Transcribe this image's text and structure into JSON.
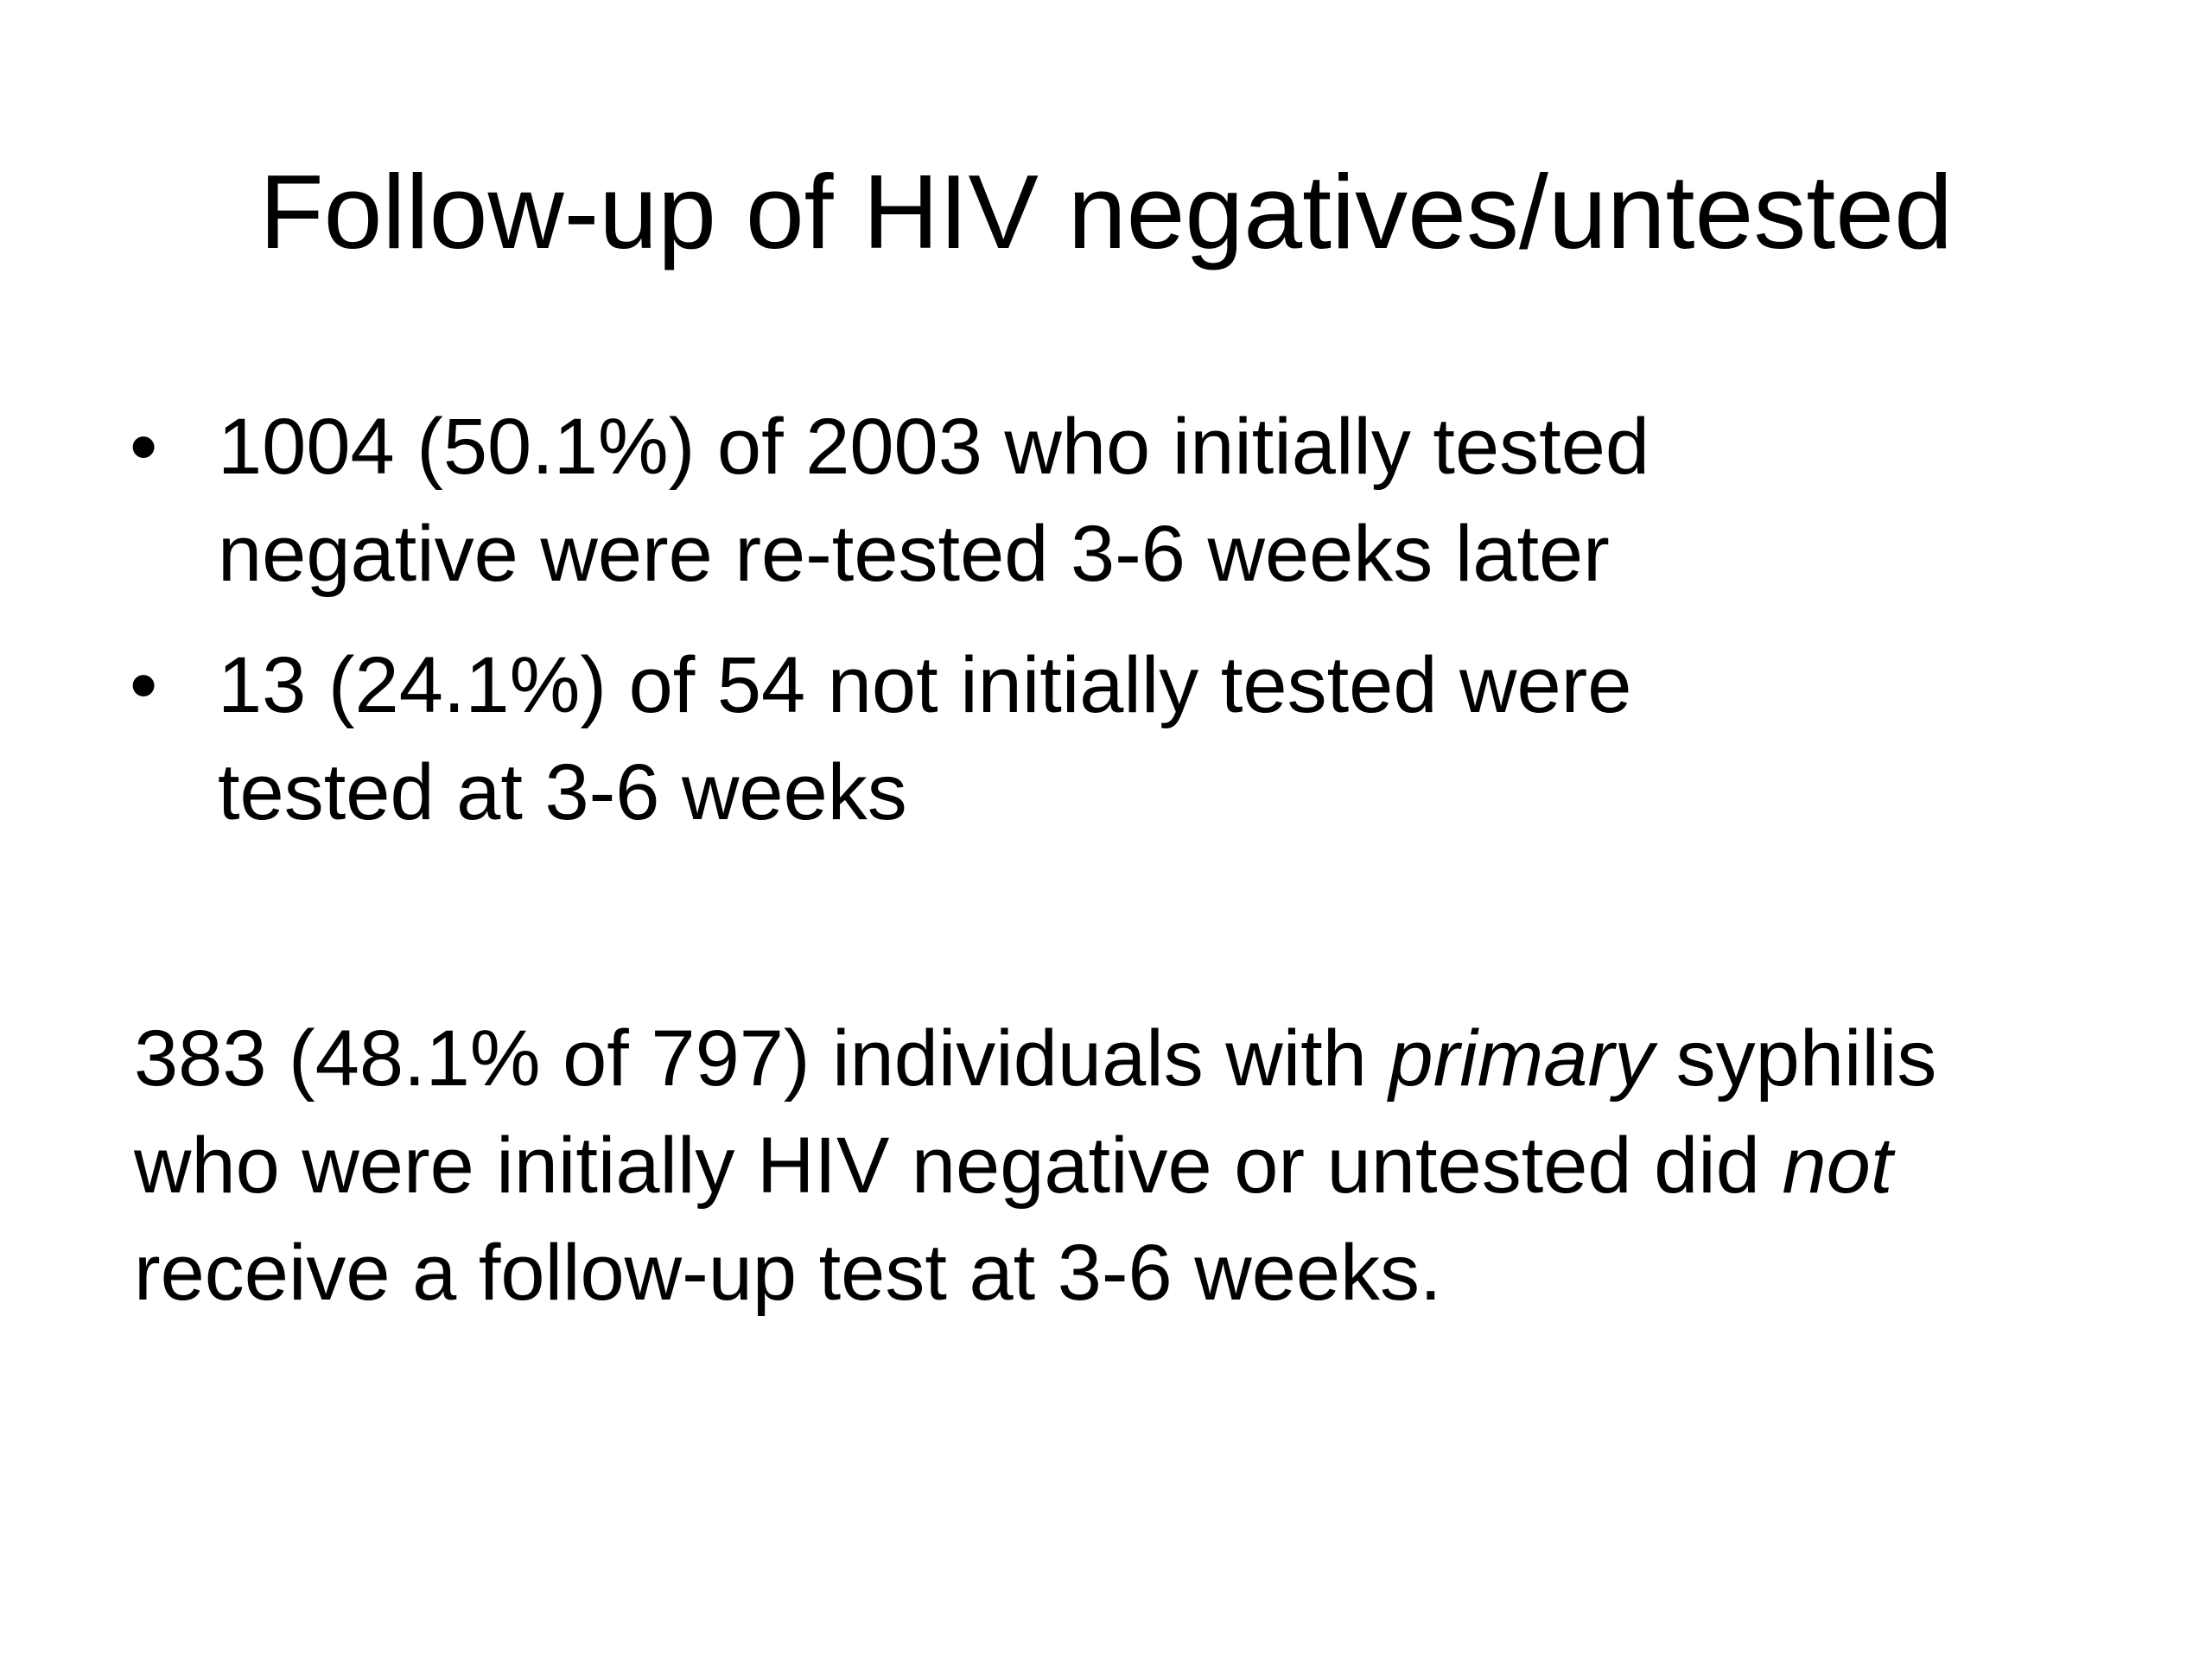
{
  "slide": {
    "title": "Follow-up of HIV negatives/untested",
    "bullets": [
      {
        "line1": "1004 (50.1%) of 2003 who initially tested",
        "line2": "negative were re-tested 3-6 weeks later"
      },
      {
        "line1": "13 (24.1%) of 54 not initially tested were",
        "line2": "tested at 3-6 weeks"
      }
    ],
    "paragraph": {
      "part1": "383 (48.1% of 797) individuals with ",
      "emphasis1": "primary",
      "part2": " syphilis who were initially HIV negative or untested did ",
      "emphasis2": "not",
      "part3": " receive a follow-up test at 3-6 weeks."
    }
  }
}
